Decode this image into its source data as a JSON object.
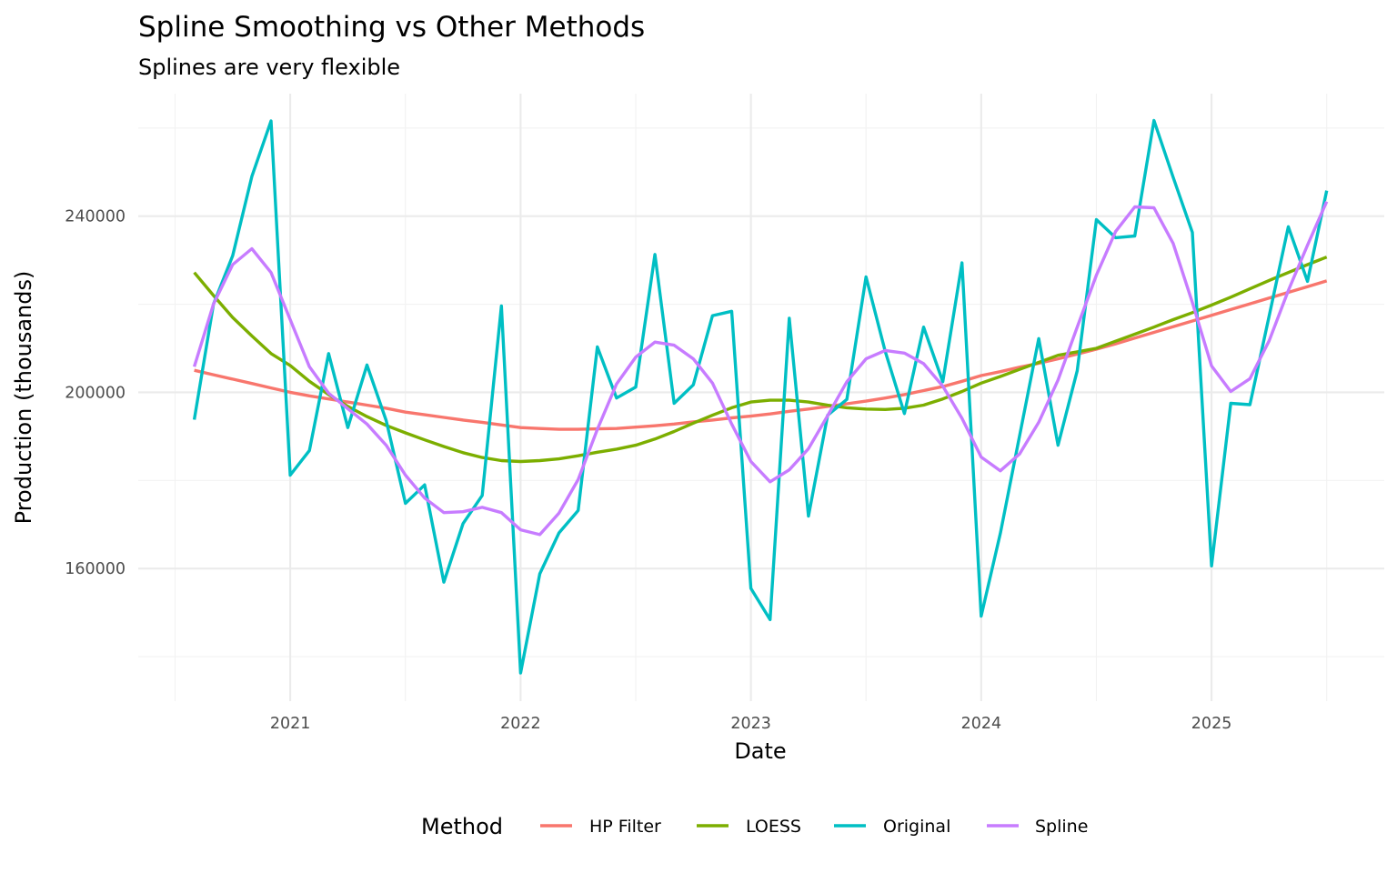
{
  "chart_data": {
    "type": "line",
    "title": "Spline Smoothing vs Other Methods",
    "subtitle": "Splines are very flexible",
    "xlabel": "Date",
    "ylabel": "Production (thousands)",
    "x_ticks": [
      {
        "value": 2021,
        "label": "2021"
      },
      {
        "value": 2022,
        "label": "2022"
      },
      {
        "value": 2023,
        "label": "2023"
      },
      {
        "value": 2024,
        "label": "2024"
      },
      {
        "value": 2025,
        "label": "2025"
      }
    ],
    "x_minor_ticks": [
      2020.5,
      2021.5,
      2022.5,
      2023.5,
      2024.5,
      2025.5
    ],
    "y_ticks": [
      {
        "value": 160000,
        "label": "160000"
      },
      {
        "value": 200000,
        "label": "200000"
      },
      {
        "value": 240000,
        "label": "240000"
      }
    ],
    "y_minor_ticks": [
      140000,
      180000,
      220000,
      260000
    ],
    "xlim": [
      2020.34,
      2025.75
    ],
    "ylim": [
      129900,
      267800
    ],
    "grid": true,
    "legend": {
      "title": "Method",
      "position": "bottom",
      "entries": [
        {
          "label": "HP Filter",
          "color": "#F8766D"
        },
        {
          "label": "LOESS",
          "color": "#7CAE00"
        },
        {
          "label": "Original",
          "color": "#00BFC4"
        },
        {
          "label": "Spline",
          "color": "#C77CFF"
        }
      ]
    },
    "x": [
      "2020-08",
      "2020-09",
      "2020-10",
      "2020-11",
      "2020-12",
      "2021-01",
      "2021-02",
      "2021-03",
      "2021-04",
      "2021-05",
      "2021-06",
      "2021-07",
      "2021-08",
      "2021-09",
      "2021-10",
      "2021-11",
      "2021-12",
      "2022-01",
      "2022-02",
      "2022-03",
      "2022-04",
      "2022-05",
      "2022-06",
      "2022-07",
      "2022-08",
      "2022-09",
      "2022-10",
      "2022-11",
      "2022-12",
      "2023-01",
      "2023-02",
      "2023-03",
      "2023-04",
      "2023-05",
      "2023-06",
      "2023-07",
      "2023-08",
      "2023-09",
      "2023-10",
      "2023-11",
      "2023-12",
      "2024-01",
      "2024-02",
      "2024-03",
      "2024-04",
      "2024-05",
      "2024-06",
      "2024-07",
      "2024-08",
      "2024-09",
      "2024-10",
      "2024-11",
      "2024-12",
      "2025-01",
      "2025-02",
      "2025-03",
      "2025-04",
      "2025-05",
      "2025-06",
      "2025-07"
    ],
    "series": [
      {
        "name": "HP Filter",
        "color": "#F8766D",
        "values": [
          205000,
          204000,
          203000,
          202000,
          201000,
          200000,
          199200,
          198500,
          197800,
          197100,
          196400,
          195500,
          194900,
          194300,
          193700,
          193200,
          192600,
          192000,
          191800,
          191600,
          191600,
          191700,
          191800,
          192100,
          192400,
          192800,
          193300,
          193700,
          194200,
          194600,
          195100,
          195700,
          196200,
          196800,
          197400,
          198000,
          198700,
          199500,
          200400,
          201300,
          202500,
          203800,
          204700,
          205700,
          206600,
          207600,
          208700,
          209800,
          211000,
          212300,
          213600,
          214900,
          216200,
          217500,
          218800,
          220100,
          221400,
          222700,
          224000,
          225300
        ]
      },
      {
        "name": "LOESS",
        "color": "#7CAE00",
        "values": [
          227200,
          222000,
          217000,
          212800,
          208800,
          206100,
          202500,
          199500,
          196800,
          194500,
          192500,
          190800,
          189200,
          187700,
          186300,
          185200,
          184500,
          184300,
          184500,
          184900,
          185600,
          186400,
          187100,
          188000,
          189400,
          191100,
          193000,
          194800,
          196500,
          197800,
          198200,
          198200,
          197800,
          197100,
          196500,
          196200,
          196100,
          196400,
          197100,
          198500,
          200200,
          202100,
          203600,
          205200,
          206800,
          208400,
          209200,
          210000,
          211600,
          213200,
          214800,
          216500,
          218100,
          219800,
          221600,
          223500,
          225400,
          227200,
          229000,
          230700
        ]
      },
      {
        "name": "Original",
        "color": "#00BFC4",
        "values": [
          193800,
          220000,
          231000,
          249000,
          261600,
          181200,
          186800,
          208800,
          192000,
          206200,
          193600,
          174800,
          179000,
          156900,
          170200,
          176600,
          219600,
          136300,
          158800,
          168100,
          173200,
          210300,
          198700,
          201200,
          231300,
          197500,
          201700,
          217400,
          218400,
          155500,
          148400,
          216800,
          171900,
          194800,
          198400,
          226200,
          209300,
          195200,
          214800,
          202400,
          229400,
          149200,
          168000,
          190100,
          212200,
          188000,
          204900,
          239200,
          235100,
          235500,
          261700,
          248800,
          236300,
          160600,
          197500,
          197200,
          217300,
          237600,
          225200,
          245800
        ]
      },
      {
        "name": "Spline",
        "color": "#C77CFF",
        "values": [
          205800,
          220000,
          229000,
          232600,
          227200,
          216500,
          205800,
          199800,
          196300,
          192800,
          188000,
          181200,
          176000,
          172700,
          172900,
          173900,
          172700,
          168800,
          167700,
          172600,
          180200,
          191600,
          201900,
          208000,
          211400,
          210700,
          207600,
          202100,
          192800,
          184300,
          179700,
          182400,
          187200,
          194700,
          202400,
          207600,
          209500,
          208900,
          206500,
          201400,
          194100,
          185300,
          182200,
          186000,
          193200,
          202800,
          214800,
          226600,
          236500,
          242100,
          241900,
          233800,
          220400,
          206000,
          200200,
          203100,
          211700,
          223100,
          233400,
          243300
        ]
      }
    ]
  }
}
